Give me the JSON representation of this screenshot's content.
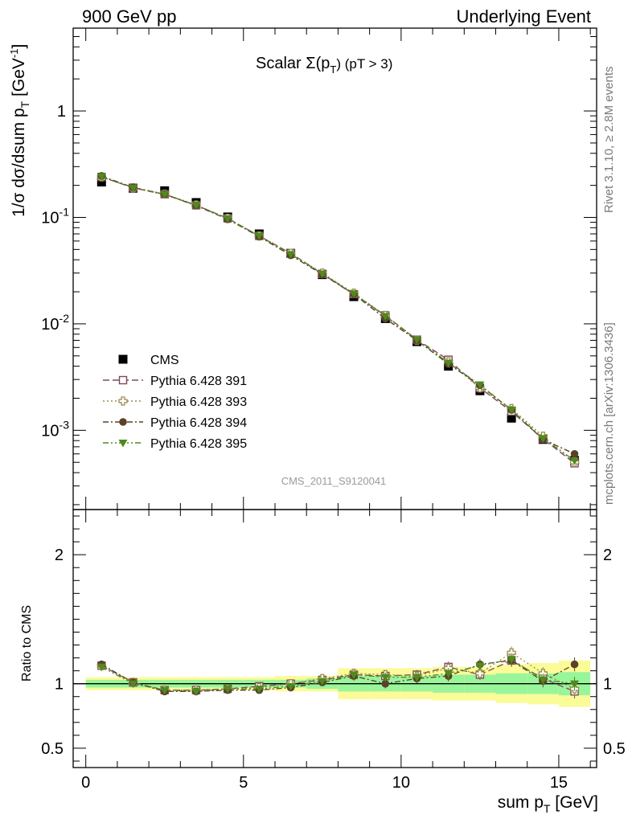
{
  "header": {
    "left": "900 GeV pp",
    "right": "Underlying Event"
  },
  "plot_title": {
    "main": "Scalar Σ(p",
    "sub": "T",
    "tail": ") (pT >  3)"
  },
  "analysis_id": "CMS_2011_S9120041",
  "side_text": {
    "top": "Rivet 3.1.10, ≥ 2.8M events",
    "bottom": "mcplots.cern.ch [arXiv:1306.3436]"
  },
  "chart_data": [
    {
      "type": "scatter",
      "panel": "main",
      "ylabel": "1/σ dσ/dsum p_T [GeV^-1]",
      "yscale": "log",
      "ylim": [
        0.00018,
        6
      ],
      "xlim": [
        -0.4,
        16.2
      ],
      "y_tick_labels": [
        "10^-3",
        "10^-2",
        "10^-1",
        "1"
      ],
      "legend_placement": "lower-left",
      "x": [
        0.5,
        1.5,
        2.5,
        3.5,
        4.5,
        5.5,
        6.5,
        7.5,
        8.5,
        9.5,
        10.5,
        11.5,
        12.5,
        13.5,
        14.5,
        15.5
      ],
      "series": [
        {
          "name": "CMS",
          "color": "#000000",
          "marker": "filled-square",
          "values": [
            0.215,
            0.188,
            0.178,
            0.138,
            0.101,
            0.07,
            0.046,
            0.029,
            0.018,
            0.0112,
            0.0068,
            0.004,
            0.00235,
            0.0013,
            0.00082,
            0.00052
          ]
        },
        {
          "name": "Pythia 6.428 391",
          "color": "#7b4a5e",
          "marker": "open-square",
          "line": "dashed",
          "values": [
            0.24,
            0.19,
            0.165,
            0.13,
            0.098,
            0.067,
            0.046,
            0.0295,
            0.019,
            0.012,
            0.0071,
            0.0046,
            0.0025,
            0.0015,
            0.00083,
            0.00049
          ]
        },
        {
          "name": "Pythia 6.428 393",
          "color": "#9a8a4a",
          "marker": "open-cross",
          "line": "dotted",
          "values": [
            0.24,
            0.19,
            0.166,
            0.131,
            0.098,
            0.067,
            0.046,
            0.03,
            0.0194,
            0.012,
            0.007,
            0.0044,
            0.0025,
            0.0016,
            0.00088,
            0.0005
          ]
        },
        {
          "name": "Pythia 6.428 394",
          "color": "#5a4228",
          "marker": "filled-circle",
          "line": "dash-dot",
          "values": [
            0.245,
            0.191,
            0.165,
            0.129,
            0.096,
            0.066,
            0.044,
            0.0292,
            0.019,
            0.0112,
            0.007,
            0.0042,
            0.00265,
            0.00155,
            0.00082,
            0.0006
          ]
        },
        {
          "name": "Pythia 6.428 395",
          "color": "#4e8a1e",
          "marker": "filled-triangle-down",
          "line": "dash-dot-dot",
          "values": [
            0.242,
            0.189,
            0.164,
            0.13,
            0.097,
            0.067,
            0.045,
            0.0296,
            0.0192,
            0.0118,
            0.0071,
            0.0043,
            0.00268,
            0.00155,
            0.00084,
            0.00052
          ]
        }
      ]
    },
    {
      "type": "scatter",
      "panel": "ratio",
      "ylabel": "Ratio to CMS",
      "xlabel": "sum p_T [GeV]",
      "ylim": [
        0.35,
        2.35
      ],
      "xlim": [
        -0.4,
        16.2
      ],
      "x_tick_labels": [
        "0",
        "5",
        "10",
        "15"
      ],
      "y_tick_labels": [
        "0.5",
        "1",
        "2"
      ],
      "x": [
        0.5,
        1.5,
        2.5,
        3.5,
        4.5,
        5.5,
        6.5,
        7.5,
        8.5,
        9.5,
        10.5,
        11.5,
        12.5,
        13.5,
        14.5,
        15.5
      ],
      "bin_edges": [
        0,
        1,
        2,
        3,
        4,
        5,
        6,
        7,
        8,
        9,
        10,
        11,
        12,
        13,
        14,
        15,
        16
      ],
      "band_stat": [
        0.03,
        0.03,
        0.03,
        0.03,
        0.03,
        0.03,
        0.03,
        0.04,
        0.06,
        0.06,
        0.06,
        0.07,
        0.07,
        0.08,
        0.08,
        0.09
      ],
      "band_total": [
        0.05,
        0.05,
        0.05,
        0.05,
        0.05,
        0.05,
        0.06,
        0.06,
        0.12,
        0.12,
        0.12,
        0.13,
        0.13,
        0.15,
        0.16,
        0.18
      ],
      "band_colors": {
        "stat": "#99f59a",
        "total": "#fbfb98"
      },
      "series": [
        {
          "name": "Pythia 6.428 391",
          "values": [
            1.14,
            1.01,
            0.95,
            0.95,
            0.96,
            0.98,
            1.0,
            1.03,
            1.07,
            1.06,
            1.07,
            1.13,
            1.07,
            1.18,
            1.04,
            0.94
          ]
        },
        {
          "name": "Pythia 6.428 393",
          "values": [
            1.14,
            1.01,
            0.95,
            0.95,
            0.96,
            0.97,
            1.0,
            1.04,
            1.08,
            1.07,
            1.06,
            1.12,
            1.08,
            1.24,
            1.08,
            0.96
          ]
        },
        {
          "name": "Pythia 6.428 394",
          "values": [
            1.15,
            1.01,
            0.94,
            0.94,
            0.95,
            0.95,
            0.97,
            1.01,
            1.06,
            1.0,
            1.04,
            1.06,
            1.15,
            1.18,
            1.02,
            1.15
          ]
        },
        {
          "name": "Pythia 6.428 395",
          "values": [
            1.13,
            1.0,
            0.95,
            0.94,
            0.96,
            0.96,
            0.98,
            1.02,
            1.07,
            1.05,
            1.05,
            1.08,
            1.14,
            1.19,
            1.03,
            1.0
          ]
        }
      ]
    }
  ]
}
